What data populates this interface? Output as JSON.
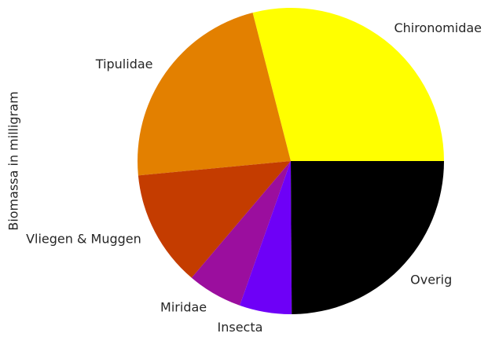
{
  "chart_data": {
    "type": "pie",
    "title": "",
    "ylabel": "Biomassa in milligram",
    "start_angle_deg": 0,
    "direction": "counterclockwise",
    "slices": [
      {
        "label": "Chironomidae",
        "value": 29.0,
        "color": "#ffff00"
      },
      {
        "label": "Tipulidae",
        "value": 22.5,
        "color": "#e38000"
      },
      {
        "label": "Vliegen & Muggen",
        "value": 12.3,
        "color": "#c43c00"
      },
      {
        "label": "Miridae",
        "value": 5.8,
        "color": "#9b0e9e"
      },
      {
        "label": "Insecta",
        "value": 5.5,
        "color": "#6e00f7"
      },
      {
        "label": "Overig",
        "value": 24.9,
        "color": "#000000"
      }
    ]
  }
}
